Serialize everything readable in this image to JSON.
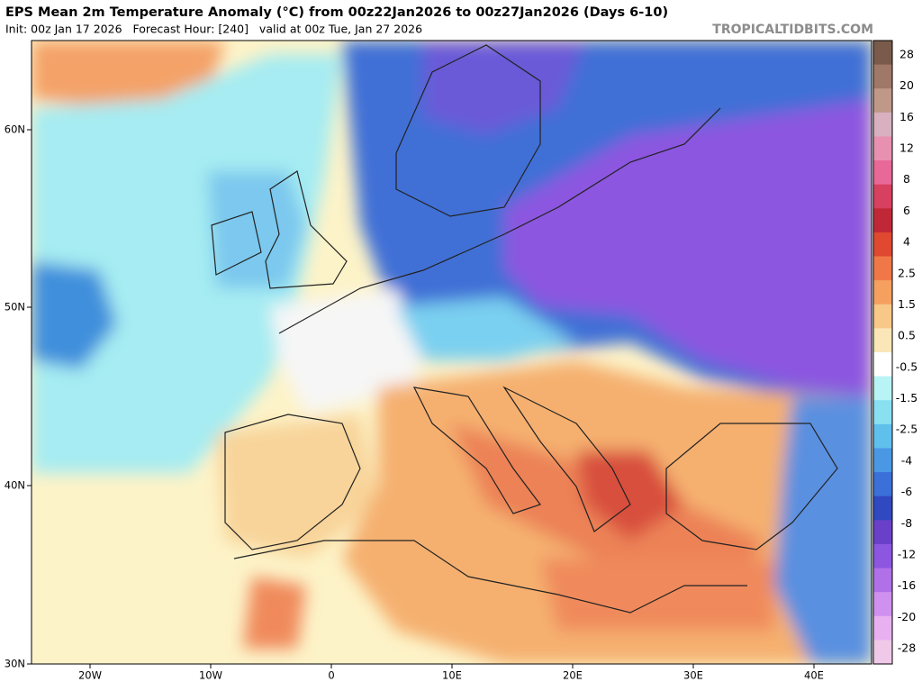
{
  "header": {
    "title": "EPS Mean 2m Temperature Anomaly (°C) from 00z22Jan2026 to 00z27Jan2026 (Days 6-10)",
    "subtitle": "Init: 00z Jan 17 2026   Forecast Hour: [240]   valid at 00z Tue, Jan 27 2026",
    "site": "TROPICALTIDBITS.COM"
  },
  "map": {
    "lat_labels": [
      "60N",
      "50N",
      "40N",
      "30N"
    ],
    "lon_labels": [
      "20W",
      "10W",
      "0",
      "10E",
      "20E",
      "30E",
      "40E"
    ]
  },
  "colorbar": {
    "labels": [
      "28",
      "20",
      "16",
      "12",
      "8",
      "6",
      "4",
      "2.5",
      "1.5",
      "0.5",
      "-0.5",
      "-1.5",
      "-2.5",
      "-4",
      "-6",
      "-8",
      "-12",
      "-16",
      "-20",
      "-28"
    ]
  }
}
